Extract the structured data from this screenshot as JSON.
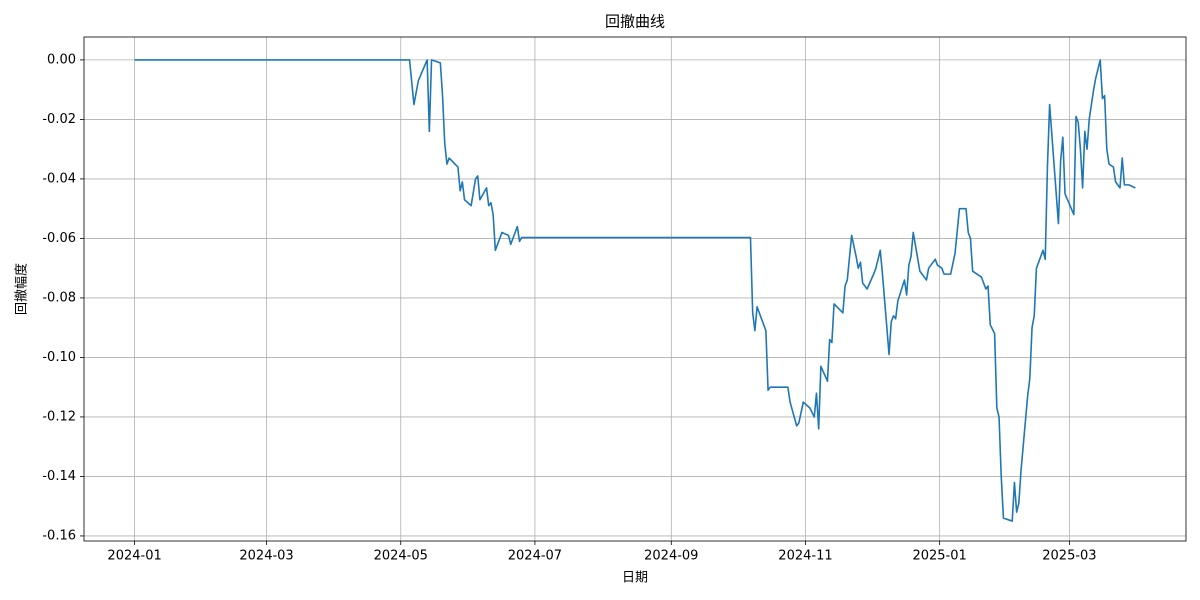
{
  "chart_data": {
    "type": "line",
    "title": "回撤曲线",
    "xlabel": "日期",
    "ylabel": "回撤幅度",
    "color": "#1f77b4",
    "grid": true,
    "xlim": [
      "2023-12-09",
      "2025-04-23"
    ],
    "xticks": [
      "2024-01",
      "2024-03",
      "2024-05",
      "2024-07",
      "2024-09",
      "2024-11",
      "2025-01",
      "2025-03"
    ],
    "ylim": [
      -0.1617,
      0.0077
    ],
    "yticks": [
      {
        "value": -0.16,
        "label": "-0.16"
      },
      {
        "value": -0.14,
        "label": "-0.14"
      },
      {
        "value": -0.12,
        "label": "-0.12"
      },
      {
        "value": -0.1,
        "label": "-0.10"
      },
      {
        "value": -0.08,
        "label": "-0.08"
      },
      {
        "value": -0.06,
        "label": "-0.06"
      },
      {
        "value": -0.04,
        "label": "-0.04"
      },
      {
        "value": -0.02,
        "label": "-0.02"
      },
      {
        "value": 0,
        "label": "0.00"
      }
    ],
    "x": [
      "2024-01-01",
      "2024-05-05",
      "2024-05-07",
      "2024-05-09",
      "2024-05-13",
      "2024-05-14",
      "2024-05-15",
      "2024-05-19",
      "2024-05-20",
      "2024-05-21",
      "2024-05-22",
      "2024-05-23",
      "2024-05-27",
      "2024-05-28",
      "2024-05-29",
      "2024-05-30",
      "2024-06-02",
      "2024-06-04",
      "2024-06-05",
      "2024-06-06",
      "2024-06-09",
      "2024-06-10",
      "2024-06-11",
      "2024-06-12",
      "2024-06-13",
      "2024-06-16",
      "2024-06-19",
      "2024-06-20",
      "2024-06-23",
      "2024-06-24",
      "2024-06-25",
      "2024-10-07",
      "2024-10-08",
      "2024-10-09",
      "2024-10-10",
      "2024-10-14",
      "2024-10-15",
      "2024-10-16",
      "2024-10-24",
      "2024-10-25",
      "2024-10-28",
      "2024-10-29",
      "2024-10-31",
      "2024-11-03",
      "2024-11-05",
      "2024-11-06",
      "2024-11-07",
      "2024-11-08",
      "2024-11-11",
      "2024-11-12",
      "2024-11-13",
      "2024-11-14",
      "2024-11-18",
      "2024-11-19",
      "2024-11-20",
      "2024-11-22",
      "2024-11-24",
      "2024-11-25",
      "2024-11-26",
      "2024-11-27",
      "2024-11-29",
      "2024-12-02",
      "2024-12-03",
      "2024-12-05",
      "2024-12-06",
      "2024-12-09",
      "2024-12-10",
      "2024-12-11",
      "2024-12-12",
      "2024-12-13",
      "2024-12-16",
      "2024-12-17",
      "2024-12-18",
      "2024-12-19",
      "2024-12-20",
      "2024-12-23",
      "2024-12-26",
      "2024-12-27",
      "2024-12-30",
      "2024-12-31",
      "2025-01-02",
      "2025-01-03",
      "2025-01-06",
      "2025-01-08",
      "2025-01-10",
      "2025-01-13",
      "2025-01-14",
      "2025-01-15",
      "2025-01-16",
      "2025-01-20",
      "2025-01-22",
      "2025-01-23",
      "2025-01-24",
      "2025-01-26",
      "2025-01-27",
      "2025-01-28",
      "2025-01-29",
      "2025-01-30",
      "2025-02-03",
      "2025-02-04",
      "2025-02-05",
      "2025-02-06",
      "2025-02-07",
      "2025-02-10",
      "2025-02-11",
      "2025-02-12",
      "2025-02-13",
      "2025-02-14",
      "2025-02-17",
      "2025-02-18",
      "2025-02-19",
      "2025-02-20",
      "2025-02-24",
      "2025-02-25",
      "2025-02-26",
      "2025-02-27",
      "2025-03-03",
      "2025-03-04",
      "2025-03-05",
      "2025-03-06",
      "2025-03-07",
      "2025-03-08",
      "2025-03-09",
      "2025-03-10",
      "2025-03-12",
      "2025-03-13",
      "2025-03-15",
      "2025-03-16",
      "2025-03-17",
      "2025-03-18",
      "2025-03-19",
      "2025-03-21",
      "2025-03-22",
      "2025-03-24",
      "2025-03-25",
      "2025-03-26",
      "2025-03-28",
      "2025-03-31"
    ],
    "values": [
      0,
      0,
      -0.015,
      -0.007,
      0,
      -0.024,
      0,
      -0.001,
      -0.012,
      -0.028,
      -0.035,
      -0.033,
      -0.036,
      -0.044,
      -0.041,
      -0.047,
      -0.049,
      -0.04,
      -0.039,
      -0.047,
      -0.043,
      -0.049,
      -0.048,
      -0.052,
      -0.064,
      -0.058,
      -0.059,
      -0.062,
      -0.056,
      -0.061,
      -0.0597,
      -0.0597,
      -0.085,
      -0.091,
      -0.083,
      -0.091,
      -0.111,
      -0.11,
      -0.11,
      -0.115,
      -0.123,
      -0.122,
      -0.115,
      -0.117,
      -0.12,
      -0.112,
      -0.124,
      -0.103,
      -0.108,
      -0.094,
      -0.095,
      -0.082,
      -0.085,
      -0.076,
      -0.074,
      -0.059,
      -0.066,
      -0.07,
      -0.068,
      -0.075,
      -0.077,
      -0.072,
      -0.07,
      -0.064,
      -0.072,
      -0.099,
      -0.088,
      -0.086,
      -0.087,
      -0.081,
      -0.074,
      -0.079,
      -0.069,
      -0.066,
      -0.058,
      -0.071,
      -0.074,
      -0.07,
      -0.067,
      -0.069,
      -0.07,
      -0.072,
      -0.072,
      -0.065,
      -0.05,
      -0.05,
      -0.058,
      -0.06,
      -0.071,
      -0.073,
      -0.077,
      -0.076,
      -0.089,
      -0.092,
      -0.117,
      -0.12,
      -0.14,
      -0.154,
      -0.155,
      -0.142,
      -0.152,
      -0.149,
      -0.138,
      -0.113,
      -0.107,
      -0.09,
      -0.086,
      -0.07,
      -0.064,
      -0.067,
      -0.036,
      -0.015,
      -0.055,
      -0.034,
      -0.026,
      -0.045,
      -0.052,
      -0.019,
      -0.021,
      -0.03,
      -0.043,
      -0.024,
      -0.03,
      -0.02,
      -0.01,
      -0.006,
      0,
      -0.013,
      -0.012,
      -0.03,
      -0.035,
      -0.036,
      -0.041,
      -0.043,
      -0.033,
      -0.042,
      -0.042,
      -0.043
    ]
  }
}
